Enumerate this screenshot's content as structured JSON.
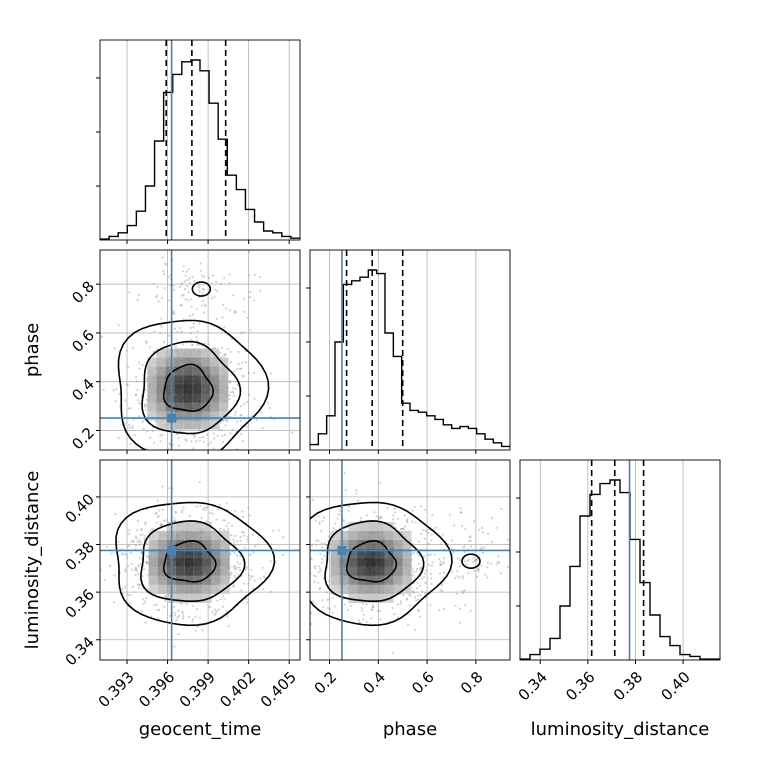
{
  "chart_data": {
    "type": "corner",
    "parameters": [
      "geocent_time",
      "phase",
      "luminosity_distance"
    ],
    "axis_labels": {
      "geocent_time": "geocent_time",
      "phase": "phase",
      "luminosity_distance": "luminosity_distance"
    },
    "ranges": {
      "geocent_time": [
        0.391,
        0.4058
      ],
      "phase": [
        0.12,
        0.94
      ],
      "luminosity_distance": [
        0.3315,
        0.4155
      ]
    },
    "ticks": {
      "geocent_time": [
        0.393,
        0.396,
        0.399,
        0.402,
        0.405
      ],
      "phase": [
        0.2,
        0.4,
        0.6,
        0.8
      ],
      "luminosity_distance": [
        0.34,
        0.36,
        0.38,
        0.4
      ]
    },
    "tick_labels": {
      "geocent_time": [
        "0.393",
        "0.396",
        "0.399",
        "0.402",
        "0.405"
      ],
      "phase": [
        "0.2",
        "0.4",
        "0.6",
        "0.8"
      ],
      "luminosity_distance": [
        "0.34",
        "0.36",
        "0.38",
        "0.40"
      ]
    },
    "truths": {
      "geocent_time": 0.3963,
      "phase": 0.251,
      "luminosity_distance": 0.3775
    },
    "quantiles": {
      "geocent_time": [
        0.3959,
        0.3978,
        0.4003
      ],
      "phase": [
        0.27,
        0.375,
        0.5
      ],
      "luminosity_distance": [
        0.3616,
        0.3713,
        0.3834
      ]
    },
    "histograms": {
      "geocent_time": [
        0.005,
        0.02,
        0.04,
        0.08,
        0.16,
        0.3,
        0.55,
        0.82,
        0.92,
        0.99,
        1.0,
        0.94,
        0.76,
        0.56,
        0.36,
        0.28,
        0.17,
        0.1,
        0.05,
        0.04,
        0.02,
        0.01
      ],
      "phase": [
        0.03,
        0.09,
        0.19,
        0.6,
        0.92,
        0.94,
        0.96,
        1.0,
        0.98,
        0.65,
        0.52,
        0.26,
        0.22,
        0.21,
        0.19,
        0.17,
        0.14,
        0.12,
        0.13,
        0.12,
        0.09,
        0.06,
        0.04,
        0.02
      ],
      "luminosity_distance": [
        0.005,
        0.03,
        0.06,
        0.12,
        0.3,
        0.52,
        0.8,
        0.92,
        0.98,
        1.0,
        0.93,
        0.67,
        0.43,
        0.25,
        0.13,
        0.08,
        0.03,
        0.02,
        0.005,
        0.005
      ]
    },
    "histogram_ranges": {
      "geocent_time": [
        0.391,
        0.4058
      ],
      "phase": [
        0.12,
        0.94
      ],
      "luminosity_distance": [
        0.3315,
        0.4155
      ]
    },
    "pairs": [
      {
        "x": "geocent_time",
        "y": "phase",
        "center": [
          0.3975,
          0.37
        ],
        "sigma": [
          0.0018,
          0.095
        ],
        "tail": {
          "center": [
            0.3985,
            0.78
          ],
          "sigma": [
            0.0015,
            0.05
          ],
          "frac": 0.13
        }
      },
      {
        "x": "geocent_time",
        "y": "luminosity_distance",
        "center": [
          0.3976,
          0.3725
        ],
        "sigma": [
          0.0019,
          0.0085
        ]
      },
      {
        "x": "phase",
        "y": "luminosity_distance",
        "center": [
          0.37,
          0.3725
        ],
        "sigma": [
          0.1,
          0.0085
        ],
        "tail": {
          "center": [
            0.78,
            0.373
          ],
          "sigma": [
            0.06,
            0.007
          ],
          "frac": 0.12
        }
      }
    ],
    "contour_levels": [
      0.39,
      0.86,
      0.99
    ],
    "grid": true,
    "truth_color": "#4682b4",
    "line_color": "#000000",
    "point_color": "#9a9a9a"
  }
}
